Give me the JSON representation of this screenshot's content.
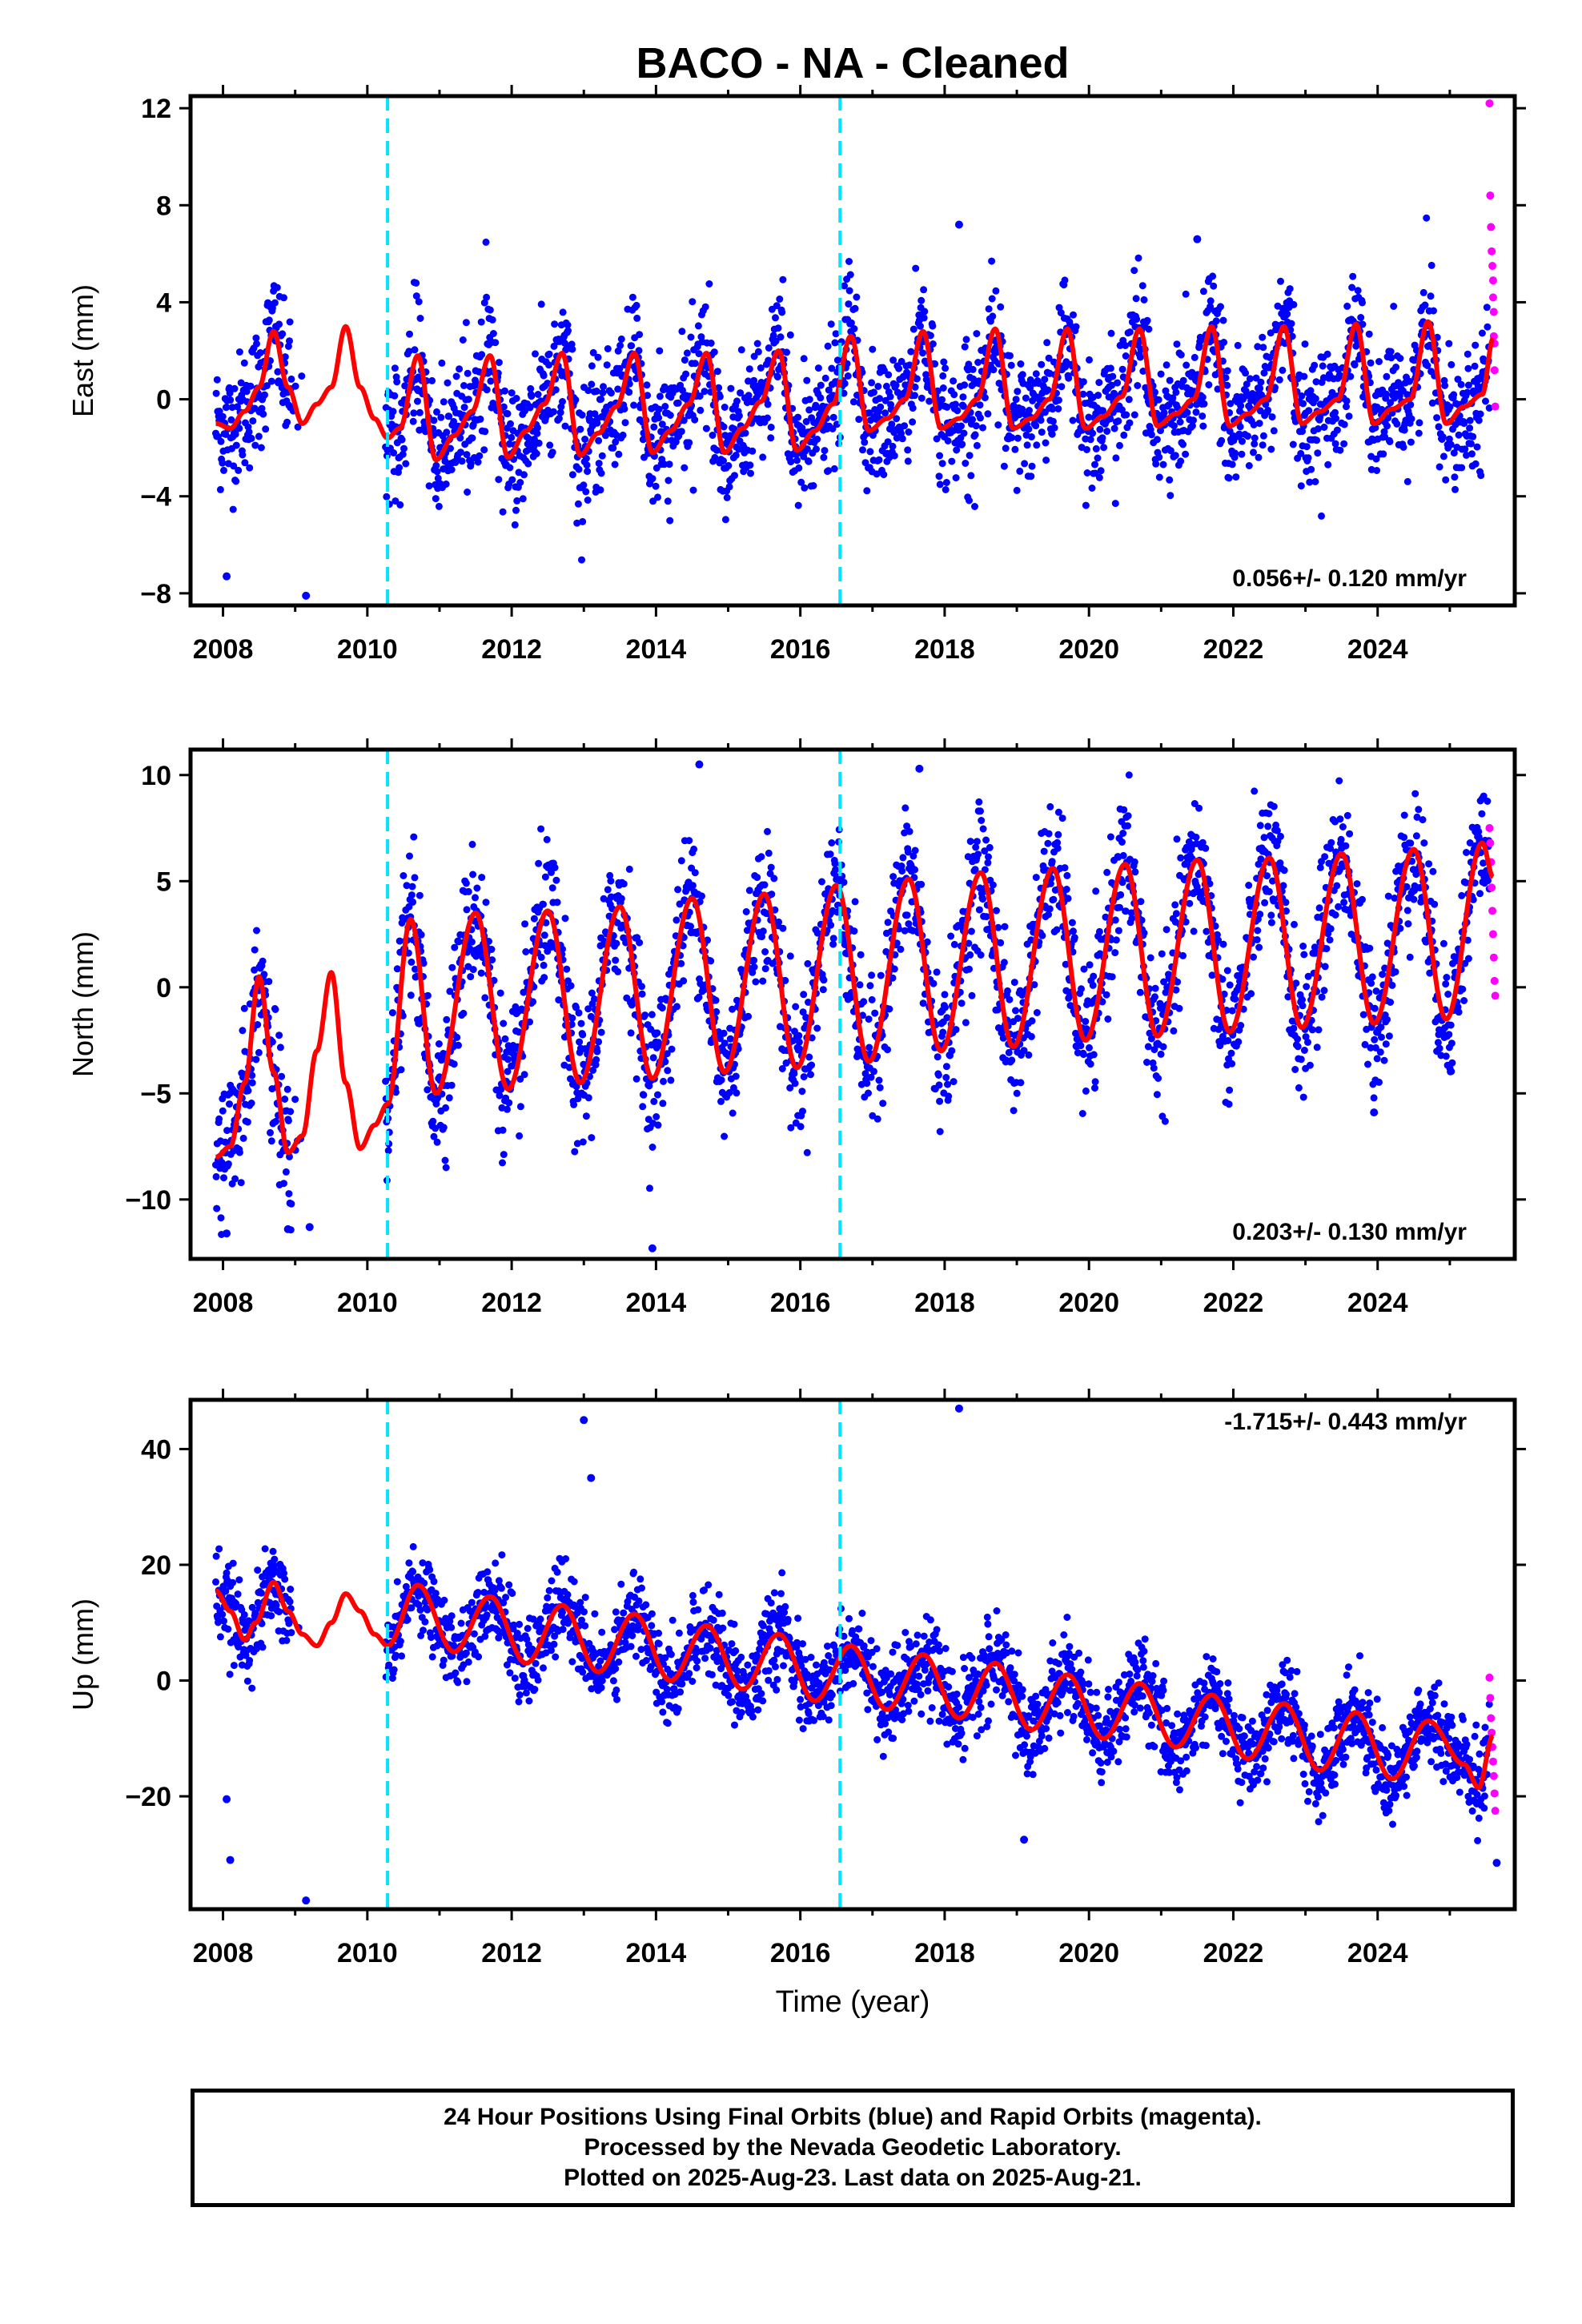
{
  "title": "BACO  - NA - Cleaned",
  "colors": {
    "final_orbits": "#0000ff",
    "rapid_orbits": "#ff00ff",
    "model": "#ff0000",
    "offsets": "#00e5ff"
  },
  "x_tick_labels": [
    "2008",
    "2010",
    "2012",
    "2014",
    "2016",
    "2018",
    "2020",
    "2022",
    "2024"
  ],
  "xlabel": "Time (year)",
  "footer": {
    "line1": "24 Hour Positions Using Final Orbits (blue) and Rapid Orbits (magenta).",
    "line2": "Processed by the Nevada Geodetic Laboratory.",
    "line3": "Plotted on 2025-Aug-23. Last data on 2025-Aug-21."
  },
  "chart_data": [
    {
      "type": "scatter",
      "component": "east",
      "ylabel": "East (mm)",
      "rate_label": "0.056+/- 0.120 mm/yr",
      "rate_position": "bottom-right",
      "xlim": [
        2007.55,
        2025.9
      ],
      "ylim": [
        -8.5,
        12.5
      ],
      "yticks": [
        -8,
        -4,
        0,
        4,
        8,
        12
      ],
      "ytick_labels": [
        "−8",
        "−4",
        "0",
        "4",
        "8",
        "12"
      ],
      "offsets": [
        2010.28,
        2016.55
      ],
      "model": {
        "x": [
          2007.9,
          2008.1,
          2008.3,
          2008.5,
          2008.7,
          2008.9,
          2009.1,
          2009.3,
          2009.5,
          2009.7,
          2009.9,
          2010.1,
          2010.28,
          2010.45,
          2010.7,
          2010.95,
          2011.2,
          2011.45,
          2011.7,
          2011.95,
          2012.2,
          2012.45,
          2012.7,
          2012.95,
          2013.2,
          2013.45,
          2013.7,
          2013.95,
          2014.2,
          2014.45,
          2014.7,
          2014.95,
          2015.2,
          2015.45,
          2015.7,
          2015.95,
          2016.2,
          2016.45,
          2016.7,
          2016.95,
          2017.2,
          2017.45,
          2017.7,
          2017.95,
          2018.2,
          2018.45,
          2018.7,
          2018.95,
          2019.2,
          2019.45,
          2019.7,
          2019.95,
          2020.2,
          2020.45,
          2020.7,
          2020.95,
          2021.2,
          2021.45,
          2021.7,
          2021.95,
          2022.2,
          2022.45,
          2022.7,
          2022.95,
          2023.2,
          2023.45,
          2023.7,
          2023.95,
          2024.2,
          2024.45,
          2024.7,
          2024.95,
          2025.2,
          2025.45,
          2025.6
        ],
        "y": [
          -1.0,
          -1.2,
          -0.5,
          0.5,
          2.8,
          0.5,
          -1.0,
          -0.2,
          0.5,
          3.0,
          0.5,
          -0.8,
          -1.6,
          -1.2,
          1.8,
          -2.5,
          -1.5,
          -0.5,
          1.8,
          -2.4,
          -1.3,
          -0.2,
          1.9,
          -2.3,
          -1.4,
          -0.3,
          1.9,
          -2.2,
          -1.3,
          -0.2,
          1.9,
          -2.2,
          -1.2,
          -0.1,
          2.0,
          -2.1,
          -1.3,
          -0.2,
          2.6,
          -1.3,
          -0.8,
          0.0,
          2.8,
          -1.2,
          -0.8,
          0.0,
          2.9,
          -1.2,
          -0.8,
          0.0,
          2.9,
          -1.2,
          -0.7,
          0.1,
          2.9,
          -1.1,
          -0.6,
          0.0,
          3.0,
          -1.1,
          -0.6,
          0.0,
          3.0,
          -1.0,
          -0.5,
          0.0,
          3.1,
          -1.0,
          -0.4,
          0.0,
          3.2,
          -1.0,
          -0.3,
          0.2,
          2.5
        ]
      },
      "rapid": {
        "x": [
          2025.55,
          2025.56,
          2025.57,
          2025.58,
          2025.59,
          2025.6,
          2025.6,
          2025.61,
          2025.61,
          2025.62,
          2025.62,
          2025.63
        ],
        "y": [
          12.2,
          8.4,
          7.1,
          6.1,
          5.5,
          4.9,
          4.2,
          3.6,
          2.6,
          2.3,
          1.2,
          -0.3
        ]
      },
      "outliers": {
        "x": [
          2008.05,
          2009.15,
          2018.2,
          2021.5
        ],
        "y": [
          -7.3,
          -8.1,
          7.2,
          6.6
        ]
      },
      "annual_amplitude": 2.2,
      "scatter_sd": 1.3
    },
    {
      "type": "scatter",
      "component": "north",
      "ylabel": "North (mm)",
      "rate_label": "0.203+/- 0.130 mm/yr",
      "rate_position": "bottom-right",
      "xlim": [
        2007.55,
        2025.9
      ],
      "ylim": [
        -12.8,
        11.2
      ],
      "yticks": [
        -10,
        -5,
        0,
        5,
        10
      ],
      "ytick_labels": [
        "−10",
        "−5",
        "0",
        "5",
        "10"
      ],
      "offsets": [
        2010.28,
        2016.55
      ],
      "model": {
        "x": [
          2007.9,
          2008.1,
          2008.3,
          2008.5,
          2008.7,
          2008.9,
          2009.1,
          2009.3,
          2009.5,
          2009.7,
          2009.9,
          2010.1,
          2010.28,
          2010.6,
          2010.95,
          2011.5,
          2011.95,
          2012.5,
          2012.95,
          2013.5,
          2013.95,
          2014.5,
          2014.95,
          2015.5,
          2015.95,
          2016.5,
          2016.95,
          2017.5,
          2017.95,
          2018.5,
          2018.95,
          2019.5,
          2019.95,
          2020.5,
          2020.95,
          2021.5,
          2021.95,
          2022.5,
          2022.95,
          2023.5,
          2023.95,
          2024.5,
          2024.95,
          2025.45,
          2025.6
        ],
        "y": [
          -8.0,
          -7.5,
          -4.5,
          0.5,
          -4.0,
          -7.8,
          -7.0,
          -3.0,
          0.7,
          -4.5,
          -7.6,
          -6.5,
          -5.5,
          3.2,
          -5.0,
          3.5,
          -4.8,
          3.6,
          -4.5,
          3.8,
          -4.3,
          4.2,
          -4.0,
          4.4,
          -3.8,
          4.8,
          -3.5,
          5.1,
          -3.0,
          5.4,
          -2.8,
          5.6,
          -2.5,
          5.8,
          -2.3,
          6.0,
          -2.1,
          6.1,
          -1.9,
          6.3,
          -1.7,
          6.5,
          -1.5,
          6.8,
          5.2
        ]
      },
      "rapid": {
        "x": [
          2025.55,
          2025.56,
          2025.57,
          2025.58,
          2025.59,
          2025.6,
          2025.61,
          2025.62,
          2025.63
        ],
        "y": [
          7.5,
          6.8,
          5.9,
          4.7,
          3.6,
          2.5,
          1.4,
          0.3,
          -0.4
        ]
      },
      "outliers": {
        "x": [
          2008.05,
          2008.9,
          2009.2,
          2013.95,
          2014.6,
          2017.65,
          2023.95
        ],
        "y": [
          -11.6,
          -11.4,
          -11.3,
          -12.3,
          10.5,
          10.3,
          -5.9
        ]
      },
      "annual_amplitude": 4.2,
      "scatter_sd": 1.6
    },
    {
      "type": "scatter",
      "component": "up",
      "ylabel": "Up (mm)",
      "rate_label": "-1.715+/- 0.443 mm/yr",
      "rate_position": "top-right",
      "xlim": [
        2007.55,
        2025.9
      ],
      "ylim": [
        -39.5,
        48.5
      ],
      "yticks": [
        -20,
        0,
        20,
        40
      ],
      "ytick_labels": [
        "−20",
        "0",
        "20",
        "40"
      ],
      "offsets": [
        2010.28,
        2016.55
      ],
      "model": {
        "x": [
          2007.9,
          2008.1,
          2008.3,
          2008.45,
          2008.7,
          2008.9,
          2009.1,
          2009.3,
          2009.5,
          2009.7,
          2009.9,
          2010.1,
          2010.28,
          2010.7,
          2011.2,
          2011.7,
          2012.2,
          2012.7,
          2013.2,
          2013.7,
          2014.2,
          2014.7,
          2015.2,
          2015.7,
          2016.2,
          2016.7,
          2017.2,
          2017.7,
          2018.2,
          2018.7,
          2019.2,
          2019.7,
          2020.2,
          2020.7,
          2021.2,
          2021.7,
          2022.2,
          2022.7,
          2023.2,
          2023.7,
          2024.2,
          2024.7,
          2025.2,
          2025.4,
          2025.6
        ],
        "y": [
          15.5,
          12.0,
          7.0,
          10.0,
          17.0,
          12.0,
          8.0,
          6.0,
          10.0,
          15.0,
          12.0,
          8.0,
          6.0,
          16.5,
          5.0,
          14.5,
          3.0,
          13.0,
          1.5,
          11.5,
          0.0,
          9.5,
          -1.5,
          8.0,
          -3.5,
          6.0,
          -5.0,
          4.5,
          -6.5,
          3.0,
          -8.5,
          1.0,
          -10.0,
          -0.5,
          -11.5,
          -2.5,
          -13.5,
          -4.0,
          -15.5,
          -5.5,
          -17.0,
          -7.0,
          -14.5,
          -18.5,
          -9.5
        ]
      },
      "rapid": {
        "x": [
          2025.55,
          2025.56,
          2025.57,
          2025.58,
          2025.59,
          2025.6,
          2025.61,
          2025.62,
          2025.63
        ],
        "y": [
          0.5,
          -3.0,
          -6.5,
          -9.0,
          -11.5,
          -14.0,
          -16.5,
          -19.5,
          -22.5
        ]
      },
      "outliers": {
        "x": [
          2008.05,
          2008.1,
          2009.15,
          2013.0,
          2013.1,
          2018.2,
          2019.1,
          2025.65
        ],
        "y": [
          -20.5,
          -31.0,
          -38.0,
          45.0,
          35.0,
          47.0,
          -27.5,
          -31.5
        ]
      },
      "annual_amplitude": 6.0,
      "scatter_sd": 3.6
    }
  ]
}
